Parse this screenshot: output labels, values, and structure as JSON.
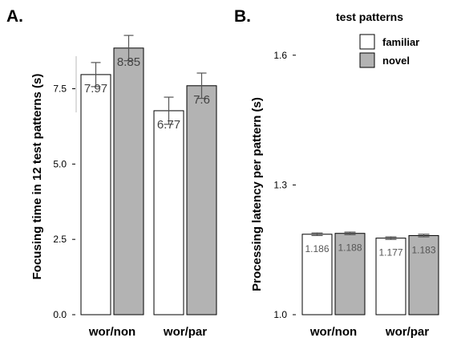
{
  "legend": {
    "title": "test patterns",
    "entries": [
      {
        "label": "familiar",
        "color": "#ffffff"
      },
      {
        "label": "novel",
        "color": "#b3b3b3"
      }
    ]
  },
  "chart_data": [
    {
      "type": "bar",
      "panel": "A.",
      "title": "",
      "xlabel": "",
      "ylabel": "Focusing time in 12 test patterns (s)",
      "categories": [
        "wor/non",
        "wor/par"
      ],
      "ylim": [
        0,
        8.9
      ],
      "yticks": [
        0.0,
        2.5,
        5.0,
        7.5
      ],
      "ytick_labels": [
        "0.0",
        "2.5",
        "5.0",
        "7.5"
      ],
      "series": [
        {
          "name": "familiar",
          "values": [
            7.97,
            6.77
          ],
          "errors": [
            0.4,
            0.45
          ],
          "labels": [
            "7.97",
            "6.77"
          ]
        },
        {
          "name": "novel",
          "values": [
            8.85,
            7.6
          ],
          "errors": [
            0.42,
            0.42
          ],
          "labels": [
            "8.85",
            "7.6"
          ]
        }
      ],
      "grid": false
    },
    {
      "type": "bar",
      "panel": "B.",
      "title": "",
      "xlabel": "",
      "ylabel": "Processing latency per pattern (s)",
      "categories": [
        "wor/non",
        "wor/par"
      ],
      "ylim": [
        1.0,
        1.62
      ],
      "yticks": [
        1.0,
        1.3,
        1.6
      ],
      "ytick_labels": [
        "1.0",
        "1.3",
        "1.6"
      ],
      "series": [
        {
          "name": "familiar",
          "values": [
            1.186,
            1.177
          ],
          "errors": [
            0.003,
            0.003
          ],
          "labels": [
            "1.186",
            "1.177"
          ]
        },
        {
          "name": "novel",
          "values": [
            1.188,
            1.183
          ],
          "errors": [
            0.003,
            0.003
          ],
          "labels": [
            "1.188",
            "1.183"
          ]
        }
      ],
      "grid": false
    }
  ]
}
